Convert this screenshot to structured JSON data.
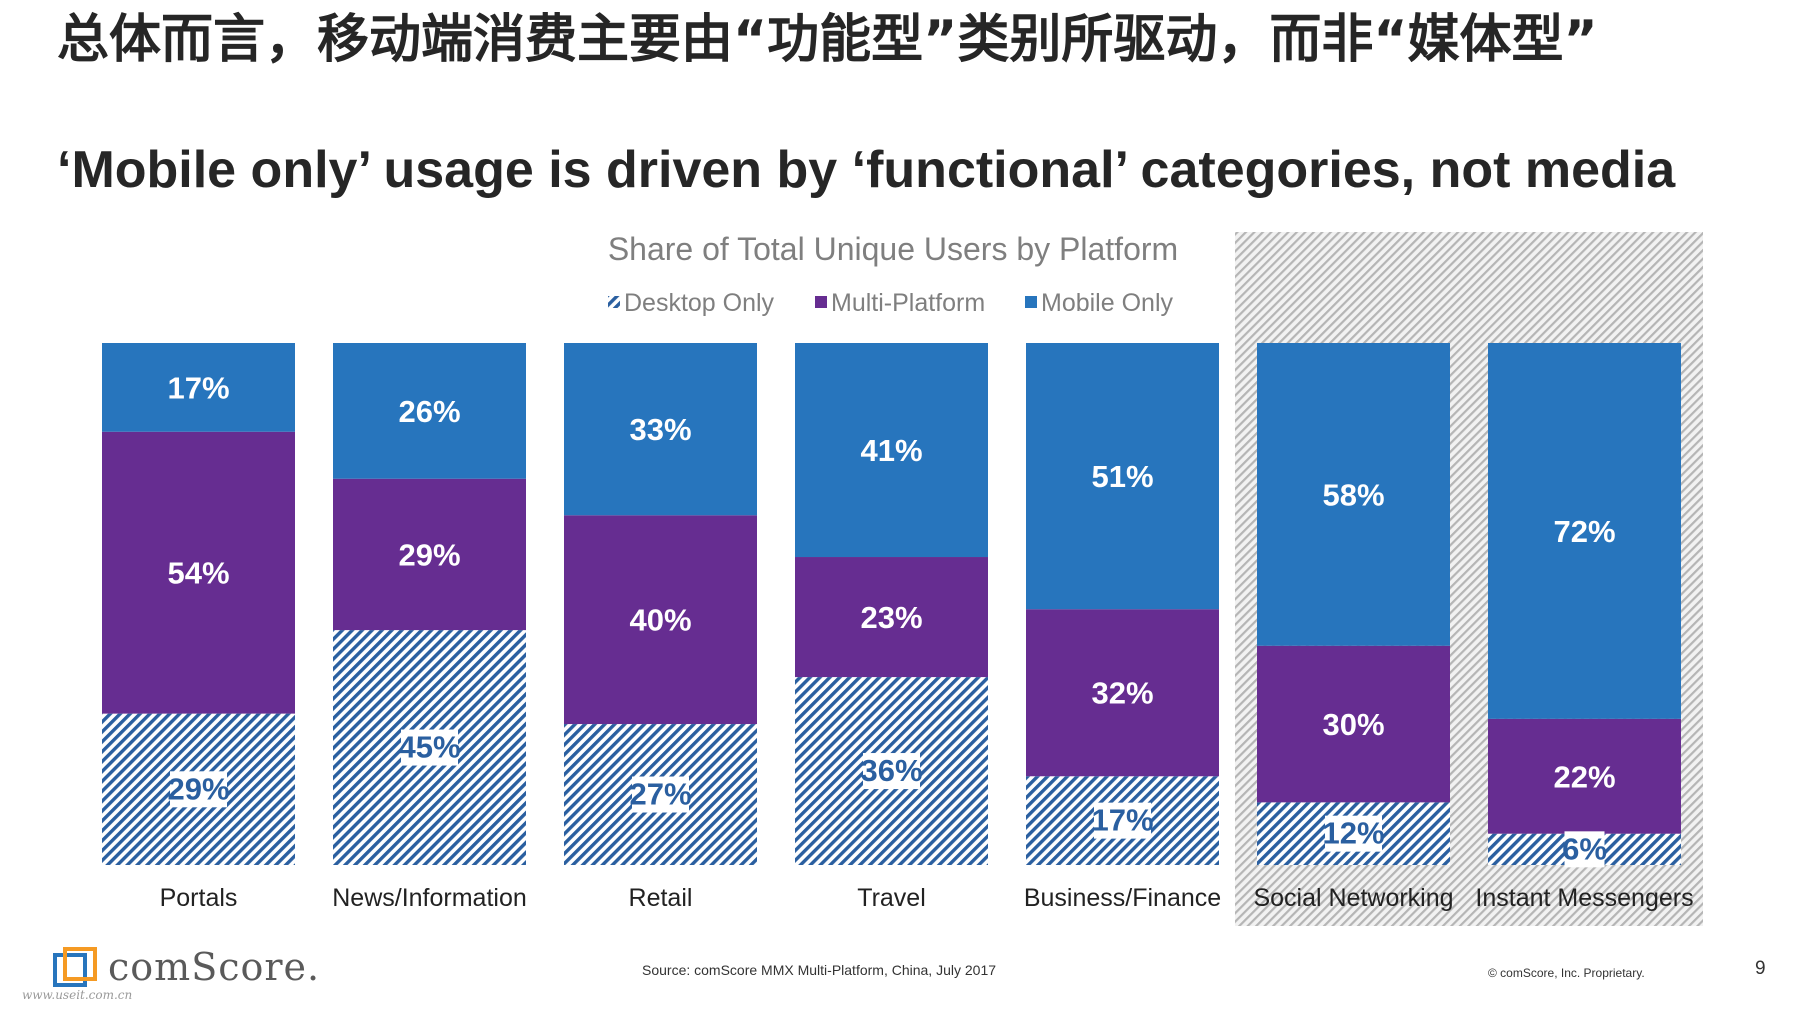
{
  "slide": {
    "title_cn": "总体而言，移动端消费主要由“功能型”类别所驱动，而非“媒体型”",
    "title_en": "‘Mobile only’ usage is driven by ‘functional’ categories, not media",
    "source": "Source: comScore MMX Multi-Platform, China, July 2017",
    "copyright": "© comScore, Inc. Proprietary.",
    "page_number": "9",
    "logo_text": "comScore.",
    "watermark": "www.useit.com.cn"
  },
  "colors": {
    "desktop": "#2a5fa0",
    "multi": "#662d91",
    "mobile": "#2775bd",
    "highlight_hatch": "#b5b5b5",
    "title_text": "#7f7f7f"
  },
  "chart_data": {
    "type": "bar",
    "stacked": true,
    "percent_stacked": true,
    "title": "Share of Total Unique Users by Platform",
    "categories": [
      "Portals",
      "News/Information",
      "Retail",
      "Travel",
      "Business/Finance",
      "Social Networking",
      "Instant Messengers"
    ],
    "series": [
      {
        "name": "Desktop Only",
        "values": [
          29,
          45,
          27,
          36,
          17,
          12,
          6
        ],
        "labels": [
          "29%",
          "45%",
          "27%",
          "36%",
          "17%",
          "12%",
          "6%"
        ],
        "pattern": "diagonal-hatch"
      },
      {
        "name": "Multi-Platform",
        "values": [
          54,
          29,
          40,
          23,
          32,
          30,
          22
        ],
        "labels": [
          "54%",
          "29%",
          "40%",
          "23%",
          "32%",
          "30%",
          "22%"
        ]
      },
      {
        "name": "Mobile Only",
        "values": [
          17,
          26,
          33,
          41,
          51,
          58,
          72
        ],
        "labels": [
          "17%",
          "26%",
          "33%",
          "41%",
          "51%",
          "58%",
          "72%"
        ]
      }
    ],
    "ylim": [
      0,
      100
    ],
    "legend_position": "top",
    "grid": false,
    "highlighted_categories": [
      "Social Networking",
      "Instant Messengers"
    ]
  }
}
